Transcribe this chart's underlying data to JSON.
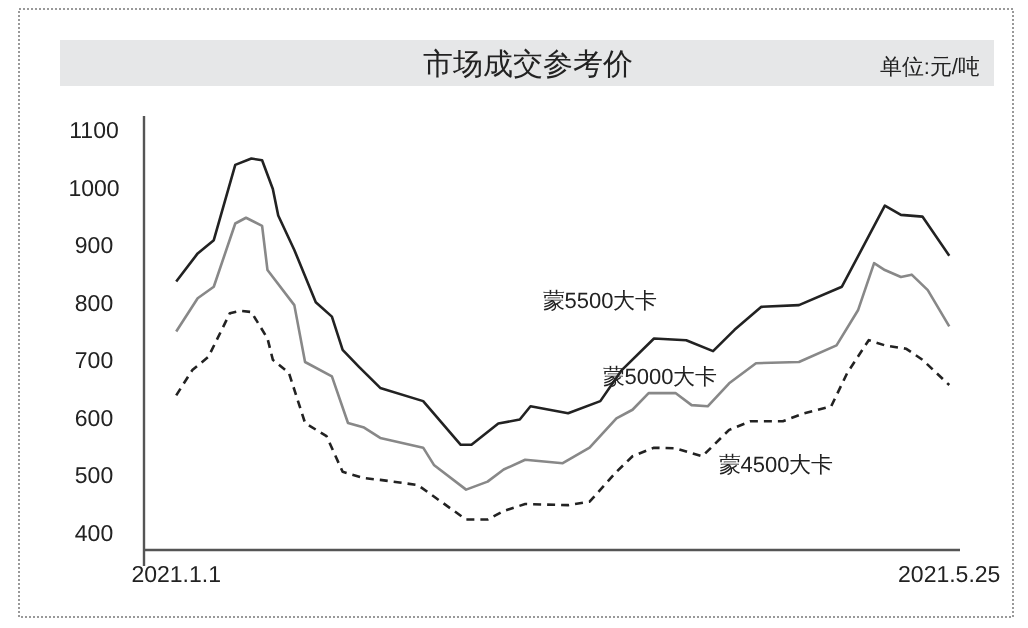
{
  "chart_data": {
    "type": "line",
    "title": "市场成交参考价",
    "annotations": [
      "单位:元/吨"
    ],
    "xlim": [
      "2020-12-26",
      "2021-05-27"
    ],
    "xticks": [
      {
        "value": "2021-01-01",
        "label": "2021.1.1"
      },
      {
        "value": "2021-05-25",
        "label": "2021.5.25"
      }
    ],
    "ylim": [
      370,
      1125
    ],
    "yticks": [
      400,
      500,
      600,
      700,
      800,
      900,
      1000,
      1100
    ],
    "series": [
      {
        "name": "蒙5500大卡",
        "color": "#222222",
        "line_style": "solid",
        "x": [
          "2021-01-01",
          "2021-01-05",
          "2021-01-08",
          "2021-01-12",
          "2021-01-15",
          "2021-01-17",
          "2021-01-19",
          "2021-01-20",
          "2021-01-23",
          "2021-01-27",
          "2021-01-30",
          "2021-02-01",
          "2021-02-04",
          "2021-02-08",
          "2021-02-16",
          "2021-02-23",
          "2021-02-25",
          "2021-03-02",
          "2021-03-06",
          "2021-03-08",
          "2021-03-15",
          "2021-03-21",
          "2021-03-25",
          "2021-03-31",
          "2021-04-06",
          "2021-04-11",
          "2021-04-15",
          "2021-04-20",
          "2021-04-27",
          "2021-05-05",
          "2021-05-13",
          "2021-05-16",
          "2021-05-20",
          "2021-05-25"
        ],
        "values": [
          837,
          886,
          909,
          1040,
          1051,
          1048,
          998,
          952,
          892,
          801,
          776,
          718,
          689,
          652,
          629,
          553,
          553,
          590,
          597,
          620,
          608,
          629,
          683,
          738,
          735,
          716,
          753,
          793,
          796,
          828,
          969,
          953,
          950,
          882
        ]
      },
      {
        "name": "蒙5000大卡",
        "color": "#888888",
        "line_style": "solid",
        "x": [
          "2021-01-01",
          "2021-01-05",
          "2021-01-08",
          "2021-01-12",
          "2021-01-14",
          "2021-01-17",
          "2021-01-18",
          "2021-01-23",
          "2021-01-25",
          "2021-01-30",
          "2021-02-02",
          "2021-02-05",
          "2021-02-08",
          "2021-02-16",
          "2021-02-18",
          "2021-02-24",
          "2021-02-28",
          "2021-03-03",
          "2021-03-07",
          "2021-03-14",
          "2021-03-19",
          "2021-03-24",
          "2021-03-27",
          "2021-03-30",
          "2021-04-04",
          "2021-04-07",
          "2021-04-10",
          "2021-04-14",
          "2021-04-19",
          "2021-04-27",
          "2021-05-04",
          "2021-05-08",
          "2021-05-11",
          "2021-05-13",
          "2021-05-16",
          "2021-05-18",
          "2021-05-21",
          "2021-05-25"
        ],
        "values": [
          750,
          808,
          828,
          938,
          948,
          934,
          857,
          796,
          697,
          672,
          591,
          583,
          565,
          548,
          518,
          475,
          489,
          510,
          527,
          521,
          548,
          599,
          614,
          643,
          643,
          622,
          620,
          660,
          695,
          697,
          726,
          787,
          869,
          857,
          845,
          849,
          822,
          759
        ]
      },
      {
        "name": "蒙4500大卡",
        "color": "#222222",
        "line_style": "dashed",
        "x": [
          "2021-01-01",
          "2021-01-04",
          "2021-01-07",
          "2021-01-11",
          "2021-01-13",
          "2021-01-15",
          "2021-01-18",
          "2021-01-19",
          "2021-01-22",
          "2021-01-25",
          "2021-01-29",
          "2021-02-01",
          "2021-02-05",
          "2021-02-08",
          "2021-02-15",
          "2021-02-18",
          "2021-02-24",
          "2021-02-28",
          "2021-03-03",
          "2021-03-07",
          "2021-03-15",
          "2021-03-19",
          "2021-03-24",
          "2021-03-27",
          "2021-03-31",
          "2021-04-04",
          "2021-04-09",
          "2021-04-14",
          "2021-04-18",
          "2021-04-24",
          "2021-04-28",
          "2021-05-03",
          "2021-05-06",
          "2021-05-10",
          "2021-05-13",
          "2021-05-17",
          "2021-05-20",
          "2021-05-25"
        ],
        "values": [
          639,
          683,
          706,
          782,
          786,
          784,
          738,
          701,
          678,
          591,
          568,
          506,
          495,
          492,
          483,
          463,
          423,
          423,
          438,
          450,
          448,
          454,
          506,
          533,
          548,
          547,
          533,
          579,
          594,
          594,
          608,
          620,
          678,
          735,
          726,
          720,
          701,
          657
        ]
      }
    ]
  }
}
